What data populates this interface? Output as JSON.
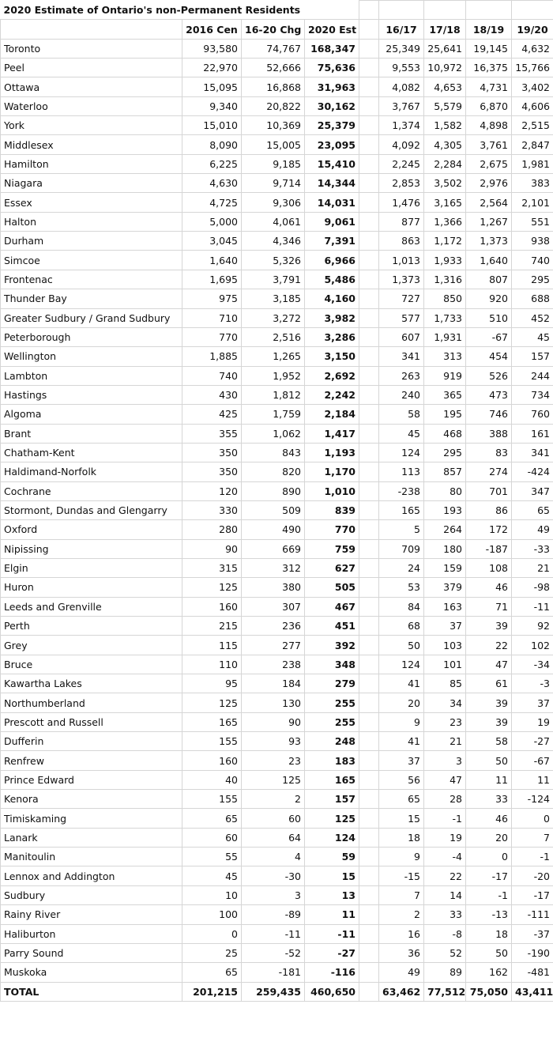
{
  "title": "2020 Estimate of Ontario's non-Permanent Residents",
  "headers": [
    "",
    "2016 Cen",
    "16-20 Chg",
    "2020 Est",
    "",
    "16/17",
    "17/18",
    "18/19",
    "19/20"
  ],
  "rows": [
    [
      "Toronto",
      "93,580",
      "74,767",
      "168,347",
      "25,349",
      "25,641",
      "19,145",
      "4,632"
    ],
    [
      "Peel",
      "22,970",
      "52,666",
      "75,636",
      "9,553",
      "10,972",
      "16,375",
      "15,766"
    ],
    [
      "Ottawa",
      "15,095",
      "16,868",
      "31,963",
      "4,082",
      "4,653",
      "4,731",
      "3,402"
    ],
    [
      "Waterloo",
      "9,340",
      "20,822",
      "30,162",
      "3,767",
      "5,579",
      "6,870",
      "4,606"
    ],
    [
      "York",
      "15,010",
      "10,369",
      "25,379",
      "1,374",
      "1,582",
      "4,898",
      "2,515"
    ],
    [
      "Middlesex",
      "8,090",
      "15,005",
      "23,095",
      "4,092",
      "4,305",
      "3,761",
      "2,847"
    ],
    [
      "Hamilton",
      "6,225",
      "9,185",
      "15,410",
      "2,245",
      "2,284",
      "2,675",
      "1,981"
    ],
    [
      "Niagara",
      "4,630",
      "9,714",
      "14,344",
      "2,853",
      "3,502",
      "2,976",
      "383"
    ],
    [
      "Essex",
      "4,725",
      "9,306",
      "14,031",
      "1,476",
      "3,165",
      "2,564",
      "2,101"
    ],
    [
      "Halton",
      "5,000",
      "4,061",
      "9,061",
      "877",
      "1,366",
      "1,267",
      "551"
    ],
    [
      "Durham",
      "3,045",
      "4,346",
      "7,391",
      "863",
      "1,172",
      "1,373",
      "938"
    ],
    [
      "Simcoe",
      "1,640",
      "5,326",
      "6,966",
      "1,013",
      "1,933",
      "1,640",
      "740"
    ],
    [
      "Frontenac",
      "1,695",
      "3,791",
      "5,486",
      "1,373",
      "1,316",
      "807",
      "295"
    ],
    [
      "Thunder Bay",
      "975",
      "3,185",
      "4,160",
      "727",
      "850",
      "920",
      "688"
    ],
    [
      "Greater Sudbury / Grand Sudbury",
      "710",
      "3,272",
      "3,982",
      "577",
      "1,733",
      "510",
      "452"
    ],
    [
      "Peterborough",
      "770",
      "2,516",
      "3,286",
      "607",
      "1,931",
      "-67",
      "45"
    ],
    [
      "Wellington",
      "1,885",
      "1,265",
      "3,150",
      "341",
      "313",
      "454",
      "157"
    ],
    [
      "Lambton",
      "740",
      "1,952",
      "2,692",
      "263",
      "919",
      "526",
      "244"
    ],
    [
      "Hastings",
      "430",
      "1,812",
      "2,242",
      "240",
      "365",
      "473",
      "734"
    ],
    [
      "Algoma",
      "425",
      "1,759",
      "2,184",
      "58",
      "195",
      "746",
      "760"
    ],
    [
      "Brant",
      "355",
      "1,062",
      "1,417",
      "45",
      "468",
      "388",
      "161"
    ],
    [
      "Chatham-Kent",
      "350",
      "843",
      "1,193",
      "124",
      "295",
      "83",
      "341"
    ],
    [
      "Haldimand-Norfolk",
      "350",
      "820",
      "1,170",
      "113",
      "857",
      "274",
      "-424"
    ],
    [
      "Cochrane",
      "120",
      "890",
      "1,010",
      "-238",
      "80",
      "701",
      "347"
    ],
    [
      "Stormont, Dundas and Glengarry",
      "330",
      "509",
      "839",
      "165",
      "193",
      "86",
      "65"
    ],
    [
      "Oxford",
      "280",
      "490",
      "770",
      "5",
      "264",
      "172",
      "49"
    ],
    [
      "Nipissing",
      "90",
      "669",
      "759",
      "709",
      "180",
      "-187",
      "-33"
    ],
    [
      "Elgin",
      "315",
      "312",
      "627",
      "24",
      "159",
      "108",
      "21"
    ],
    [
      "Huron",
      "125",
      "380",
      "505",
      "53",
      "379",
      "46",
      "-98"
    ],
    [
      "Leeds and Grenville",
      "160",
      "307",
      "467",
      "84",
      "163",
      "71",
      "-11"
    ],
    [
      "Perth",
      "215",
      "236",
      "451",
      "68",
      "37",
      "39",
      "92"
    ],
    [
      "Grey",
      "115",
      "277",
      "392",
      "50",
      "103",
      "22",
      "102"
    ],
    [
      "Bruce",
      "110",
      "238",
      "348",
      "124",
      "101",
      "47",
      "-34"
    ],
    [
      "Kawartha Lakes",
      "95",
      "184",
      "279",
      "41",
      "85",
      "61",
      "-3"
    ],
    [
      "Northumberland",
      "125",
      "130",
      "255",
      "20",
      "34",
      "39",
      "37"
    ],
    [
      "Prescott and Russell",
      "165",
      "90",
      "255",
      "9",
      "23",
      "39",
      "19"
    ],
    [
      "Dufferin",
      "155",
      "93",
      "248",
      "41",
      "21",
      "58",
      "-27"
    ],
    [
      "Renfrew",
      "160",
      "23",
      "183",
      "37",
      "3",
      "50",
      "-67"
    ],
    [
      "Prince Edward",
      "40",
      "125",
      "165",
      "56",
      "47",
      "11",
      "11"
    ],
    [
      "Kenora",
      "155",
      "2",
      "157",
      "65",
      "28",
      "33",
      "-124"
    ],
    [
      "Timiskaming",
      "65",
      "60",
      "125",
      "15",
      "-1",
      "46",
      "0"
    ],
    [
      "Lanark",
      "60",
      "64",
      "124",
      "18",
      "19",
      "20",
      "7"
    ],
    [
      "Manitoulin",
      "55",
      "4",
      "59",
      "9",
      "-4",
      "0",
      "-1"
    ],
    [
      "Lennox and Addington",
      "45",
      "-30",
      "15",
      "-15",
      "22",
      "-17",
      "-20"
    ],
    [
      "Sudbury",
      "10",
      "3",
      "13",
      "7",
      "14",
      "-1",
      "-17"
    ],
    [
      "Rainy River",
      "100",
      "-89",
      "11",
      "2",
      "33",
      "-13",
      "-111"
    ],
    [
      "Haliburton",
      "0",
      "-11",
      "-11",
      "16",
      "-8",
      "18",
      "-37"
    ],
    [
      "Parry Sound",
      "25",
      "-52",
      "-27",
      "36",
      "52",
      "50",
      "-190"
    ],
    [
      "Muskoka",
      "65",
      "-181",
      "-116",
      "49",
      "89",
      "162",
      "-481"
    ]
  ],
  "total": [
    "TOTAL",
    "201,215",
    "259,435",
    "460,650",
    "63,462",
    "77,512",
    "75,050",
    "43,411"
  ]
}
